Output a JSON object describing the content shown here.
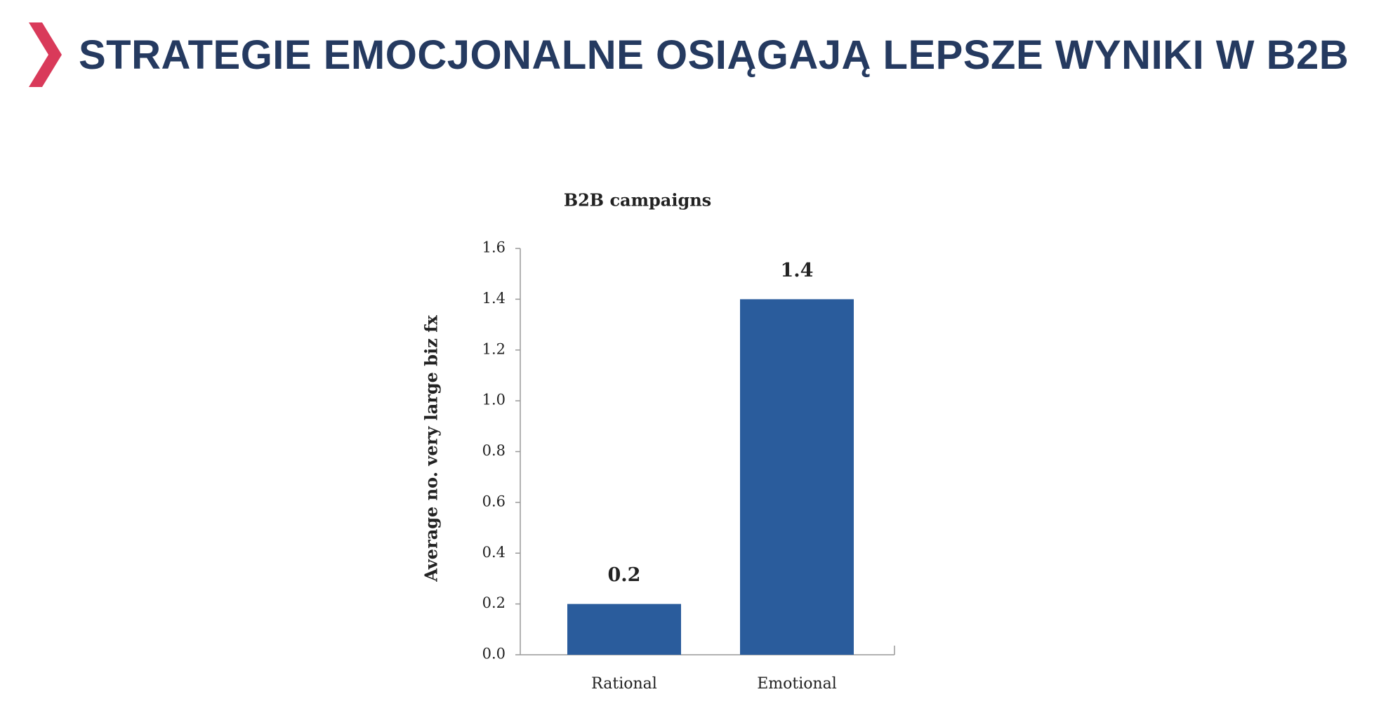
{
  "chart_data": {
    "type": "bar",
    "page_title": "STRATEGIE EMOCJONALNE OSIĄGAJĄ LEPSZE WYNIKI W B2B",
    "title": "B2B campaigns",
    "y_label": "Average no. very large biz fx",
    "categories": [
      "Rational",
      "Emotional"
    ],
    "values": [
      0.2,
      1.4
    ],
    "color": "#2a5c9c",
    "ylim": [
      0,
      1.6
    ],
    "yticks": [
      {
        "value": 0,
        "label": "0.0"
      },
      0.2,
      0.4,
      0.6,
      0.8,
      {
        "value": 1,
        "label": "1.0"
      },
      1.2,
      1.4,
      1.6
    ]
  }
}
